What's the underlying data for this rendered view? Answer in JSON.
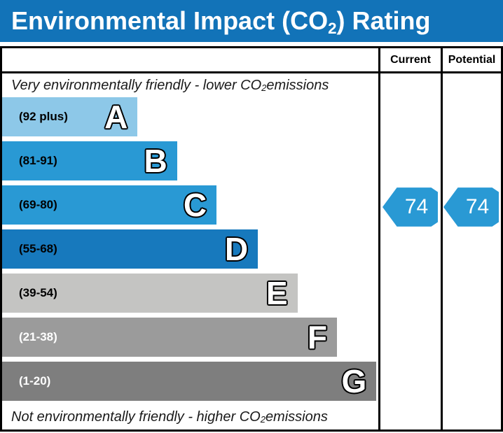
{
  "title": {
    "pre": "Environmental Impact (CO",
    "sub": "2",
    "post": ") Rating"
  },
  "colors": {
    "title_bg": "#1273B8",
    "band_blue_light": "#8DC8E8",
    "band_blue_mid": "#2999D4",
    "band_blue_dark": "#1779BD",
    "band_gray_light": "#C4C4C2",
    "band_gray_mid": "#9B9B9B",
    "band_gray_dark": "#7E7E7E",
    "arrow": "#2999D4"
  },
  "table": {
    "columns": {
      "current": "Current",
      "potential": "Potential"
    },
    "top_note": {
      "pre": "Very environmentally friendly - lower CO",
      "sub": "2",
      "post": " emissions"
    },
    "bottom_note": {
      "pre": "Not environmentally friendly - higher CO",
      "sub": "2",
      "post": " emissions"
    }
  },
  "bands": [
    {
      "letter": "A",
      "range": "(92 plus)",
      "color": "#8DC8E8",
      "width_pct": 36.0,
      "label_color": "#000000"
    },
    {
      "letter": "B",
      "range": "(81-91)",
      "color": "#2999D4",
      "width_pct": 46.5,
      "label_color": "#000000"
    },
    {
      "letter": "C",
      "range": "(69-80)",
      "color": "#2999D4",
      "width_pct": 57.0,
      "label_color": "#000000"
    },
    {
      "letter": "D",
      "range": "(55-68)",
      "color": "#1779BD",
      "width_pct": 68.0,
      "label_color": "#000000"
    },
    {
      "letter": "E",
      "range": "(39-54)",
      "color": "#C4C4C2",
      "width_pct": 78.5,
      "label_color": "#000000"
    },
    {
      "letter": "F",
      "range": "(21-38)",
      "color": "#9B9B9B",
      "width_pct": 89.0,
      "label_color": "#FFFFFF"
    },
    {
      "letter": "G",
      "range": "(1-20)",
      "color": "#7E7E7E",
      "width_pct": 99.5,
      "label_color": "#FFFFFF"
    }
  ],
  "ratings": {
    "current": {
      "value": "74",
      "band": "C",
      "band_index": 2,
      "arrow_color": "#2999D4"
    },
    "potential": {
      "value": "74",
      "band": "C",
      "band_index": 2,
      "arrow_color": "#2999D4"
    }
  },
  "chart_data": {
    "type": "bar",
    "title": "Environmental Impact (CO2) Rating",
    "categories": [
      "A (92 plus)",
      "B (81-91)",
      "C (69-80)",
      "D (55-68)",
      "E (39-54)",
      "F (21-38)",
      "G (1-20)"
    ],
    "values": [
      36.0,
      46.5,
      57.0,
      68.0,
      78.5,
      89.0,
      99.5
    ],
    "series": [
      {
        "name": "Current",
        "value": 74,
        "band": "C"
      },
      {
        "name": "Potential",
        "value": 74,
        "band": "C"
      }
    ],
    "xlabel": "",
    "ylabel": "",
    "annotations": [
      "Very environmentally friendly - lower CO2 emissions",
      "Not environmentally friendly - higher CO2 emissions"
    ],
    "legend_position": "top-right-columns",
    "grid": false
  }
}
